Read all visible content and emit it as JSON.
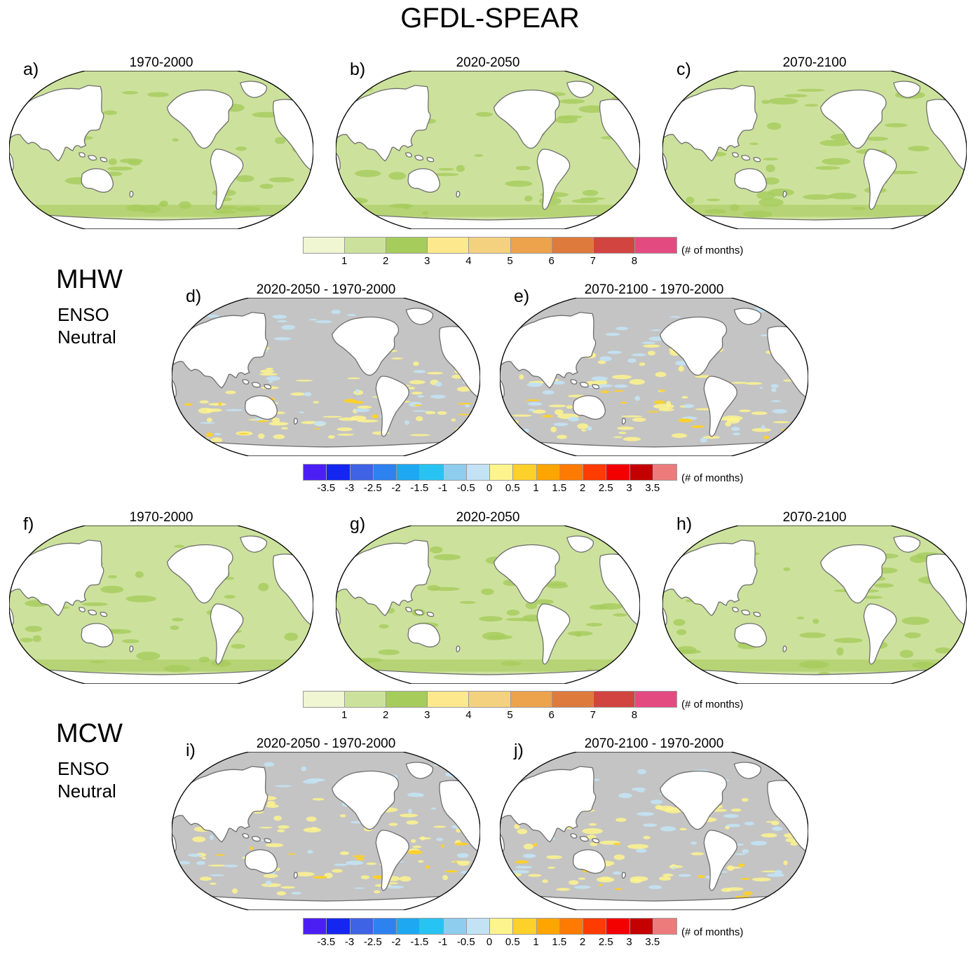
{
  "title": "GFDL-SPEAR",
  "sections": [
    {
      "label": "MHW",
      "sub_line1": "ENSO",
      "sub_line2": "Neutral"
    },
    {
      "label": "MCW",
      "sub_line1": "ENSO",
      "sub_line2": "Neutral"
    }
  ],
  "panels": [
    {
      "letter": "a)",
      "title": "1970-2000",
      "kind": "abs"
    },
    {
      "letter": "b)",
      "title": "2020-2050",
      "kind": "abs"
    },
    {
      "letter": "c)",
      "title": "2070-2100",
      "kind": "abs"
    },
    {
      "letter": "d)",
      "title": "2020-2050 - 1970-2000",
      "kind": "diff"
    },
    {
      "letter": "e)",
      "title": "2070-2100 - 1970-2000",
      "kind": "diff"
    },
    {
      "letter": "f)",
      "title": "1970-2000",
      "kind": "abs"
    },
    {
      "letter": "g)",
      "title": "2020-2050",
      "kind": "abs"
    },
    {
      "letter": "h)",
      "title": "2070-2100",
      "kind": "abs"
    },
    {
      "letter": "i)",
      "title": "2020-2050 - 1970-2000",
      "kind": "diff"
    },
    {
      "letter": "j)",
      "title": "2070-2100 - 1970-2000",
      "kind": "diff"
    }
  ],
  "colorbar_abs": {
    "colors": [
      "#f0f5d2",
      "#cce29c",
      "#a6cc5c",
      "#fde88e",
      "#f3d17f",
      "#eda34c",
      "#dd7a3c",
      "#d24440",
      "#e34b80"
    ],
    "ticks": [
      "1",
      "2",
      "3",
      "4",
      "5",
      "6",
      "7",
      "8"
    ],
    "unit": "(# of months)"
  },
  "colorbar_diff": {
    "colors": [
      "#4b1ff4",
      "#1426f0",
      "#3e63e4",
      "#2e82f0",
      "#1ea8f2",
      "#27c3f3",
      "#8fcdee",
      "#c3e3f4",
      "#fef48e",
      "#fed02a",
      "#fea500",
      "#fe7a00",
      "#fe3b00",
      "#f30000",
      "#c40000",
      "#ee7b7b"
    ],
    "ticks": [
      "-3.5",
      "-3",
      "-2.5",
      "-2",
      "-1.5",
      "-1",
      "-0.5",
      "0",
      "0.5",
      "1",
      "1.5",
      "2",
      "2.5",
      "3",
      "3.5"
    ],
    "unit": "(# of months)"
  },
  "colors": {
    "ocean_abs": "#cce29c",
    "ocean_abs_dark": "#a6cc5c",
    "ocean_diff": "#c4c4c4",
    "land": "#ffffff",
    "coast": "#6f6f6f"
  }
}
